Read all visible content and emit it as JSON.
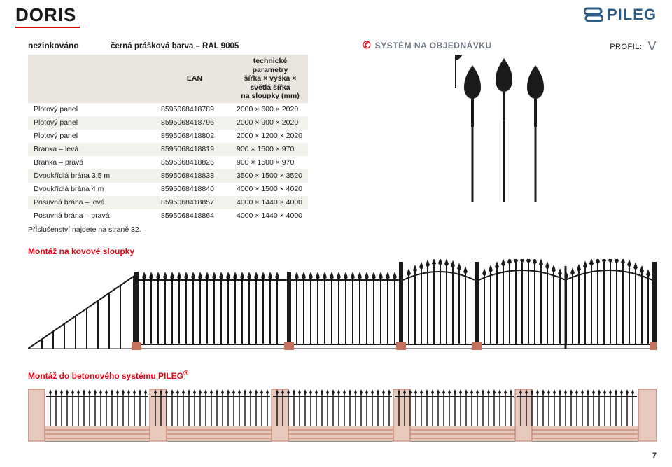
{
  "colors": {
    "accent": "#e30613",
    "logo_blue": "#2d5c88",
    "header_bg": "#e9e5de",
    "row_alt": "#f3f1ec",
    "grey": "#6e7780",
    "black": "#1a1a1a",
    "brick": "#c5705d",
    "brick_grout": "#e8c9bd"
  },
  "title": "DORIS",
  "logo_text": "PILEG",
  "nezinkovano": "nezinkováno",
  "finish": "černá prášková barva – RAL 9005",
  "system_order": "SYSTÉM NA OBJEDNÁVKU",
  "profile_label": "PROFIL:",
  "table": {
    "headers": [
      "",
      "EAN",
      "technické parametry\nšířka × výška × světlá šířka\nna sloupky (mm)"
    ],
    "rows": [
      [
        "Plotový panel",
        "8595068418789",
        "2000 × 600 × 2020"
      ],
      [
        "Plotový panel",
        "8595068418796",
        "2000 × 900 × 2020"
      ],
      [
        "Plotový panel",
        "8595068418802",
        "2000 × 1200 × 2020"
      ],
      [
        "Branka – levá",
        "8595068418819",
        "900 × 1500 × 970"
      ],
      [
        "Branka – pravá",
        "8595068418826",
        "900 × 1500 × 970"
      ],
      [
        "Dvoukřídlá brána 3,5 m",
        "8595068418833",
        "3500 × 1500 × 3520"
      ],
      [
        "Dvoukřídlá brána 4 m",
        "8595068418840",
        "4000 × 1500 × 4020"
      ],
      [
        "Posuvná brána – levá",
        "8595068418857",
        "4000 × 1440 × 4000"
      ],
      [
        "Posuvná brána – pravá",
        "8595068418864",
        "4000 × 1440 × 4000"
      ]
    ]
  },
  "accessories_note": "Příslušenství najdete na straně 32.",
  "mount_metal": "Montáž na kovové sloupky",
  "mount_concrete": "Montáž do betonového systému PILEG",
  "mount_concrete_sup": "®",
  "page_number": "7"
}
